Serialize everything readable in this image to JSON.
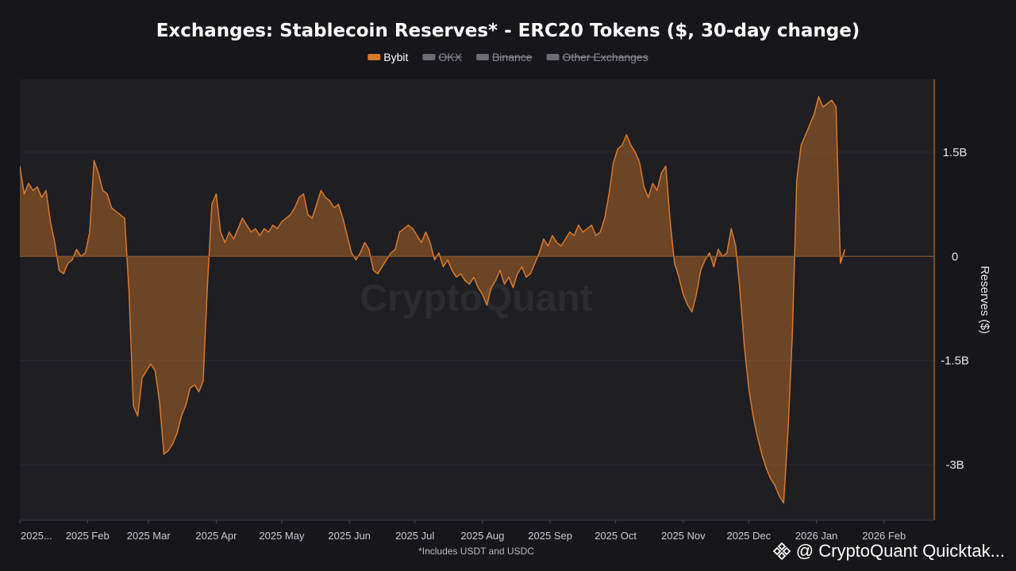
{
  "chart_data": {
    "type": "area",
    "title": "Exchanges: Stablecoin Reserves* - ERC20 Tokens ($, 30-day change)",
    "ylabel": "Reserves ($)",
    "xlabel": "",
    "ylim": [
      -3.8,
      2.55
    ],
    "y_ticks": [
      {
        "value": 1.5,
        "label": "1.5B"
      },
      {
        "value": 0,
        "label": "0"
      },
      {
        "value": -1.5,
        "label": "-1.5B"
      },
      {
        "value": -3,
        "label": "-3B"
      }
    ],
    "x_range": [
      "2025-01-01",
      "2026-02-24"
    ],
    "x_ticks": [
      {
        "date": "2025-01-01",
        "label": "2025..."
      },
      {
        "date": "2025-02-01",
        "label": "2025 Feb"
      },
      {
        "date": "2025-03-01",
        "label": "2025 Mar"
      },
      {
        "date": "2025-04-01",
        "label": "2025 Apr"
      },
      {
        "date": "2025-05-01",
        "label": "2025 May"
      },
      {
        "date": "2025-06-01",
        "label": "2025 Jun"
      },
      {
        "date": "2025-07-01",
        "label": "2025 Jul"
      },
      {
        "date": "2025-08-01",
        "label": "2025 Aug"
      },
      {
        "date": "2025-09-01",
        "label": "2025 Sep"
      },
      {
        "date": "2025-10-01",
        "label": "2025 Oct"
      },
      {
        "date": "2025-11-01",
        "label": "2025 Nov"
      },
      {
        "date": "2025-12-01",
        "label": "2025 Dec"
      },
      {
        "date": "2026-01-01",
        "label": "2026 Jan"
      },
      {
        "date": "2026-02-01",
        "label": "2026 Feb"
      }
    ],
    "legend_placement": "top-center",
    "grid": true,
    "series": [
      {
        "name": "Bybit",
        "color": "#d97a2b",
        "visible": true,
        "points": [
          [
            "2025-01-01",
            1.3
          ],
          [
            "2025-01-03",
            0.9
          ],
          [
            "2025-01-05",
            1.05
          ],
          [
            "2025-01-07",
            0.95
          ],
          [
            "2025-01-09",
            1.0
          ],
          [
            "2025-01-11",
            0.85
          ],
          [
            "2025-01-13",
            0.95
          ],
          [
            "2025-01-15",
            0.5
          ],
          [
            "2025-01-17",
            0.2
          ],
          [
            "2025-01-19",
            -0.2
          ],
          [
            "2025-01-21",
            -0.25
          ],
          [
            "2025-01-23",
            -0.1
          ],
          [
            "2025-01-25",
            -0.05
          ],
          [
            "2025-01-27",
            0.1
          ],
          [
            "2025-01-29",
            0.0
          ],
          [
            "2025-01-31",
            0.05
          ],
          [
            "2025-02-02",
            0.35
          ],
          [
            "2025-02-04",
            1.38
          ],
          [
            "2025-02-06",
            1.2
          ],
          [
            "2025-02-08",
            0.95
          ],
          [
            "2025-02-10",
            0.9
          ],
          [
            "2025-02-12",
            0.7
          ],
          [
            "2025-02-14",
            0.65
          ],
          [
            "2025-02-16",
            0.6
          ],
          [
            "2025-02-18",
            0.55
          ],
          [
            "2025-02-20",
            -0.5
          ],
          [
            "2025-02-22",
            -2.15
          ],
          [
            "2025-02-24",
            -2.3
          ],
          [
            "2025-02-26",
            -1.75
          ],
          [
            "2025-02-28",
            -1.65
          ],
          [
            "2025-03-02",
            -1.55
          ],
          [
            "2025-03-04",
            -1.65
          ],
          [
            "2025-03-06",
            -2.1
          ],
          [
            "2025-03-08",
            -2.85
          ],
          [
            "2025-03-10",
            -2.8
          ],
          [
            "2025-03-12",
            -2.7
          ],
          [
            "2025-03-14",
            -2.55
          ],
          [
            "2025-03-16",
            -2.3
          ],
          [
            "2025-03-18",
            -2.15
          ],
          [
            "2025-03-20",
            -1.9
          ],
          [
            "2025-03-22",
            -1.85
          ],
          [
            "2025-03-24",
            -1.95
          ],
          [
            "2025-03-26",
            -1.8
          ],
          [
            "2025-03-28",
            -0.4
          ],
          [
            "2025-03-30",
            0.75
          ],
          [
            "2025-04-01",
            0.9
          ],
          [
            "2025-04-03",
            0.35
          ],
          [
            "2025-04-05",
            0.2
          ],
          [
            "2025-04-07",
            0.35
          ],
          [
            "2025-04-09",
            0.25
          ],
          [
            "2025-04-11",
            0.4
          ],
          [
            "2025-04-13",
            0.55
          ],
          [
            "2025-04-15",
            0.45
          ],
          [
            "2025-04-17",
            0.35
          ],
          [
            "2025-04-19",
            0.4
          ],
          [
            "2025-04-21",
            0.3
          ],
          [
            "2025-04-23",
            0.4
          ],
          [
            "2025-04-25",
            0.35
          ],
          [
            "2025-04-27",
            0.45
          ],
          [
            "2025-04-29",
            0.4
          ],
          [
            "2025-05-01",
            0.5
          ],
          [
            "2025-05-03",
            0.55
          ],
          [
            "2025-05-05",
            0.6
          ],
          [
            "2025-05-07",
            0.7
          ],
          [
            "2025-05-09",
            0.85
          ],
          [
            "2025-05-11",
            0.9
          ],
          [
            "2025-05-13",
            0.6
          ],
          [
            "2025-05-15",
            0.55
          ],
          [
            "2025-05-17",
            0.75
          ],
          [
            "2025-05-19",
            0.95
          ],
          [
            "2025-05-21",
            0.85
          ],
          [
            "2025-05-23",
            0.8
          ],
          [
            "2025-05-25",
            0.7
          ],
          [
            "2025-05-27",
            0.75
          ],
          [
            "2025-05-29",
            0.55
          ],
          [
            "2025-05-31",
            0.3
          ],
          [
            "2025-06-02",
            0.05
          ],
          [
            "2025-06-04",
            -0.05
          ],
          [
            "2025-06-06",
            0.05
          ],
          [
            "2025-06-08",
            0.2
          ],
          [
            "2025-06-10",
            0.1
          ],
          [
            "2025-06-12",
            -0.2
          ],
          [
            "2025-06-14",
            -0.25
          ],
          [
            "2025-06-16",
            -0.15
          ],
          [
            "2025-06-18",
            -0.05
          ],
          [
            "2025-06-20",
            0.05
          ],
          [
            "2025-06-22",
            0.1
          ],
          [
            "2025-06-24",
            0.35
          ],
          [
            "2025-06-26",
            0.4
          ],
          [
            "2025-06-28",
            0.45
          ],
          [
            "2025-06-30",
            0.4
          ],
          [
            "2025-07-02",
            0.3
          ],
          [
            "2025-07-04",
            0.2
          ],
          [
            "2025-07-06",
            0.35
          ],
          [
            "2025-07-08",
            0.2
          ],
          [
            "2025-07-10",
            -0.05
          ],
          [
            "2025-07-12",
            0.05
          ],
          [
            "2025-07-14",
            -0.15
          ],
          [
            "2025-07-16",
            -0.05
          ],
          [
            "2025-07-18",
            -0.2
          ],
          [
            "2025-07-20",
            -0.3
          ],
          [
            "2025-07-22",
            -0.25
          ],
          [
            "2025-07-24",
            -0.35
          ],
          [
            "2025-07-26",
            -0.4
          ],
          [
            "2025-07-28",
            -0.3
          ],
          [
            "2025-07-30",
            -0.45
          ],
          [
            "2025-08-01",
            -0.55
          ],
          [
            "2025-08-03",
            -0.7
          ],
          [
            "2025-08-05",
            -0.45
          ],
          [
            "2025-08-07",
            -0.35
          ],
          [
            "2025-08-09",
            -0.2
          ],
          [
            "2025-08-11",
            -0.4
          ],
          [
            "2025-08-13",
            -0.3
          ],
          [
            "2025-08-15",
            -0.45
          ],
          [
            "2025-08-17",
            -0.25
          ],
          [
            "2025-08-19",
            -0.15
          ],
          [
            "2025-08-21",
            -0.3
          ],
          [
            "2025-08-23",
            -0.25
          ],
          [
            "2025-08-25",
            -0.1
          ],
          [
            "2025-08-27",
            0.05
          ],
          [
            "2025-08-29",
            0.25
          ],
          [
            "2025-08-31",
            0.15
          ],
          [
            "2025-09-02",
            0.3
          ],
          [
            "2025-09-04",
            0.2
          ],
          [
            "2025-09-06",
            0.15
          ],
          [
            "2025-09-08",
            0.25
          ],
          [
            "2025-09-10",
            0.35
          ],
          [
            "2025-09-12",
            0.3
          ],
          [
            "2025-09-14",
            0.45
          ],
          [
            "2025-09-16",
            0.35
          ],
          [
            "2025-09-18",
            0.4
          ],
          [
            "2025-09-20",
            0.45
          ],
          [
            "2025-09-22",
            0.3
          ],
          [
            "2025-09-24",
            0.35
          ],
          [
            "2025-09-26",
            0.55
          ],
          [
            "2025-09-28",
            0.9
          ],
          [
            "2025-09-30",
            1.35
          ],
          [
            "2025-10-02",
            1.55
          ],
          [
            "2025-10-04",
            1.6
          ],
          [
            "2025-10-06",
            1.75
          ],
          [
            "2025-10-08",
            1.6
          ],
          [
            "2025-10-10",
            1.5
          ],
          [
            "2025-10-12",
            1.35
          ],
          [
            "2025-10-14",
            1.0
          ],
          [
            "2025-10-16",
            0.85
          ],
          [
            "2025-10-18",
            1.05
          ],
          [
            "2025-10-20",
            0.95
          ],
          [
            "2025-10-22",
            1.2
          ],
          [
            "2025-10-24",
            1.3
          ],
          [
            "2025-10-26",
            0.5
          ],
          [
            "2025-10-28",
            -0.1
          ],
          [
            "2025-10-30",
            -0.3
          ],
          [
            "2025-11-01",
            -0.55
          ],
          [
            "2025-11-03",
            -0.7
          ],
          [
            "2025-11-05",
            -0.8
          ],
          [
            "2025-11-07",
            -0.55
          ],
          [
            "2025-11-09",
            -0.2
          ],
          [
            "2025-11-11",
            -0.05
          ],
          [
            "2025-11-13",
            0.05
          ],
          [
            "2025-11-15",
            -0.15
          ],
          [
            "2025-11-17",
            0.1
          ],
          [
            "2025-11-19",
            0.0
          ],
          [
            "2025-11-21",
            0.05
          ],
          [
            "2025-11-23",
            0.4
          ],
          [
            "2025-11-25",
            0.15
          ],
          [
            "2025-11-27",
            -0.5
          ],
          [
            "2025-11-29",
            -1.3
          ],
          [
            "2025-12-01",
            -1.9
          ],
          [
            "2025-12-03",
            -2.3
          ],
          [
            "2025-12-05",
            -2.6
          ],
          [
            "2025-12-07",
            -2.85
          ],
          [
            "2025-12-09",
            -3.05
          ],
          [
            "2025-12-11",
            -3.2
          ],
          [
            "2025-12-13",
            -3.3
          ],
          [
            "2025-12-15",
            -3.45
          ],
          [
            "2025-12-17",
            -3.55
          ],
          [
            "2025-12-19",
            -2.5
          ],
          [
            "2025-12-21",
            -1.1
          ],
          [
            "2025-12-23",
            1.1
          ],
          [
            "2025-12-25",
            1.6
          ],
          [
            "2025-12-27",
            1.75
          ],
          [
            "2025-12-29",
            1.9
          ],
          [
            "2025-12-31",
            2.05
          ],
          [
            "2026-01-02",
            2.3
          ],
          [
            "2026-01-04",
            2.15
          ],
          [
            "2026-01-06",
            2.2
          ],
          [
            "2026-01-08",
            2.25
          ],
          [
            "2026-01-10",
            2.15
          ],
          [
            "2026-01-12",
            -0.1
          ],
          [
            "2026-01-14",
            0.1
          ]
        ]
      },
      {
        "name": "OKX",
        "color": "#8a8a90",
        "visible": false
      },
      {
        "name": "Binance",
        "color": "#8a8a90",
        "visible": false
      },
      {
        "name": "Other Exchanges",
        "color": "#8a8a90",
        "visible": false
      }
    ],
    "footnote": "*Includes USDT and USDC",
    "watermark": "CryptoQuant"
  },
  "brand_tag": {
    "label": "@ CryptoQuant Quicktak...",
    "icon": "binance-diamond-icon"
  }
}
